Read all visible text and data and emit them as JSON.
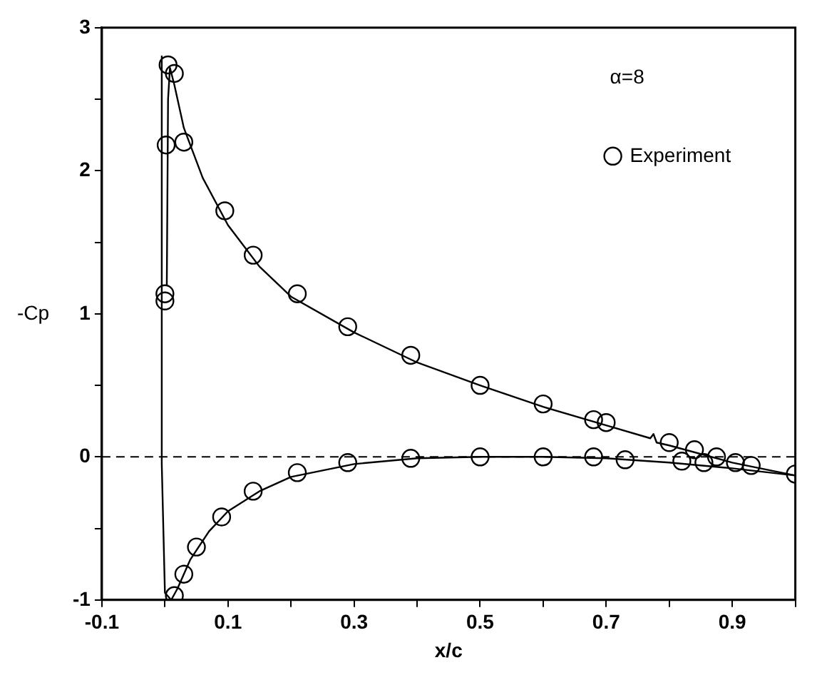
{
  "chart_data": {
    "type": "line",
    "xlabel": "x/c",
    "ylabel": "-Cp",
    "annotations": [
      "α=8"
    ],
    "xlim": [
      -0.1,
      1.0
    ],
    "ylim": [
      -1,
      3
    ],
    "xticks": [
      -0.1,
      {
        "value": 0,
        "label": null
      },
      0.1,
      {
        "value": 0.2,
        "label": null
      },
      0.3,
      {
        "value": 0.4,
        "label": null
      },
      0.5,
      {
        "value": 0.6,
        "label": null
      },
      0.7,
      {
        "value": 0.8,
        "label": null
      },
      0.9,
      {
        "value": 1.0,
        "label": null
      }
    ],
    "yticks": [
      -1,
      {
        "value": -0.5,
        "label": null
      },
      0,
      {
        "value": 0.5,
        "label": null
      },
      1,
      {
        "value": 1.5,
        "label": null
      },
      2,
      {
        "value": 2.5,
        "label": null
      },
      3
    ],
    "grid": false,
    "legend": "top right",
    "ref_lines": [
      {
        "axis": "y",
        "value": 0,
        "color": "#000000",
        "line_style": "dashed"
      }
    ],
    "series": [
      {
        "color": "#000000",
        "marker": "none",
        "line_style": "solid",
        "x": [
          0.003,
          0.005,
          0.008,
          0.015,
          0.03,
          0.06,
          0.1,
          0.15,
          0.2,
          0.3,
          0.4,
          0.5,
          0.6,
          0.7,
          0.77,
          0.775,
          0.78,
          0.8,
          0.9,
          1.0
        ],
        "values": [
          1.2,
          2.5,
          2.72,
          2.6,
          2.3,
          1.95,
          1.62,
          1.33,
          1.12,
          0.87,
          0.66,
          0.5,
          0.35,
          0.22,
          0.13,
          0.16,
          0.1,
          0.08,
          -0.04,
          -0.13
        ]
      },
      {
        "color": "#000000",
        "marker": "none",
        "line_style": "solid",
        "x": [
          -0.005,
          -0.005,
          0.0,
          0.01,
          0.02,
          0.04,
          0.07,
          0.1,
          0.15,
          0.2,
          0.3,
          0.4,
          0.5,
          0.6,
          0.7,
          0.8,
          0.9,
          1.0
        ],
        "values": [
          2.8,
          -0.05,
          -0.95,
          -1.0,
          -0.92,
          -0.72,
          -0.52,
          -0.38,
          -0.24,
          -0.14,
          -0.05,
          -0.01,
          0.0,
          0.0,
          -0.01,
          -0.04,
          -0.08,
          -0.13
        ]
      },
      {
        "type": "scatter",
        "name": "Experiment",
        "color": "#000000",
        "marker": "circle",
        "x": [
          0.005,
          0.015,
          0.002,
          0.03,
          0.095,
          0.14,
          0.21,
          0.29,
          0.39,
          0.5,
          0.6,
          0.68,
          0.7,
          0.8,
          0.84,
          0.875,
          0.905,
          0.93,
          1.0,
          0.0,
          0.0,
          0.015,
          0.03,
          0.05,
          0.09,
          0.14,
          0.21,
          0.29,
          0.39,
          0.5,
          0.6,
          0.68,
          0.73,
          0.82,
          0.855
        ],
        "values": [
          2.74,
          2.68,
          2.18,
          2.2,
          1.72,
          1.41,
          1.14,
          0.91,
          0.71,
          0.5,
          0.37,
          0.26,
          0.24,
          0.1,
          0.05,
          0.0,
          -0.04,
          -0.06,
          -0.12,
          1.14,
          1.09,
          -0.97,
          -0.82,
          -0.63,
          -0.42,
          -0.24,
          -0.11,
          -0.04,
          -0.01,
          0.0,
          0.0,
          0.0,
          -0.02,
          -0.03,
          -0.04
        ]
      }
    ]
  }
}
